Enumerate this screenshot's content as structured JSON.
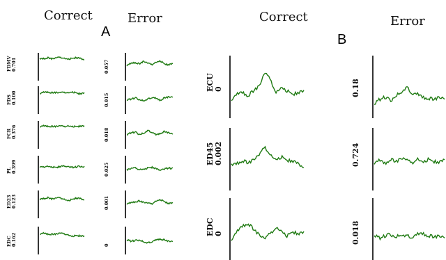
{
  "headers": {
    "a_correct": "Correct",
    "a_error": "Error",
    "b_correct": "Correct",
    "b_error": "Error"
  },
  "panels": {
    "a": "A",
    "b": "B"
  },
  "panelA": {
    "rows": [
      {
        "label": "FDMV",
        "correct_value": "0.701",
        "error_value": "0.057"
      },
      {
        "label": "FDS",
        "correct_value": "0.100",
        "error_value": "0.015"
      },
      {
        "label": "FCR",
        "correct_value": "0.376",
        "error_value": "0.018"
      },
      {
        "label": "PL",
        "correct_value": "0.399",
        "error_value": "0.025"
      },
      {
        "label": "ED23",
        "correct_value": "0.123",
        "error_value": "0.001"
      },
      {
        "label": "EDC",
        "correct_value": "0.162",
        "error_value": "0"
      }
    ]
  },
  "panelB": {
    "rows": [
      {
        "label": "ECU",
        "correct_value": "0",
        "error_value": "0.18"
      },
      {
        "label": "ED45",
        "correct_value": "0.002",
        "error_value": "0.724"
      },
      {
        "label": "EDC",
        "correct_value": "0",
        "error_value": "0.018"
      }
    ]
  },
  "colors": {
    "trace": "#1f7a12",
    "axis": "#000000"
  },
  "chart_data": {
    "type": "line",
    "panels": [
      {
        "panel": "A",
        "columns": [
          "Correct",
          "Error"
        ],
        "series": [
          {
            "name": "FDMV",
            "correct": [
              0.78,
              0.8,
              0.82,
              0.79,
              0.81,
              0.84,
              0.8,
              0.78,
              0.8,
              0.82,
              0.79,
              0.75
            ],
            "error": [
              0.55,
              0.62,
              0.66,
              0.6,
              0.7,
              0.62,
              0.58,
              0.66,
              0.72,
              0.6,
              0.56,
              0.6
            ]
          },
          {
            "name": "FDS",
            "correct": [
              0.74,
              0.78,
              0.8,
              0.76,
              0.78,
              0.76,
              0.78,
              0.76,
              0.8,
              0.76,
              0.72,
              0.74
            ],
            "error": [
              0.5,
              0.54,
              0.58,
              0.52,
              0.48,
              0.54,
              0.6,
              0.56,
              0.5,
              0.58,
              0.62,
              0.6
            ]
          },
          {
            "name": "FCR",
            "correct": [
              0.8,
              0.82,
              0.82,
              0.8,
              0.81,
              0.82,
              0.8,
              0.82,
              0.81,
              0.8,
              0.81,
              0.8
            ],
            "error": [
              0.5,
              0.58,
              0.6,
              0.52,
              0.56,
              0.66,
              0.6,
              0.5,
              0.56,
              0.62,
              0.58,
              0.52
            ]
          },
          {
            "name": "PL",
            "correct": [
              0.58,
              0.6,
              0.62,
              0.6,
              0.58,
              0.6,
              0.62,
              0.6,
              0.58,
              0.6,
              0.62,
              0.6
            ],
            "error": [
              0.5,
              0.54,
              0.56,
              0.5,
              0.52,
              0.56,
              0.58,
              0.52,
              0.48,
              0.52,
              0.56,
              0.54
            ]
          },
          {
            "name": "ED23",
            "correct": [
              0.68,
              0.72,
              0.74,
              0.7,
              0.72,
              0.74,
              0.68,
              0.64,
              0.68,
              0.72,
              0.7,
              0.66
            ],
            "error": [
              0.52,
              0.56,
              0.6,
              0.62,
              0.58,
              0.54,
              0.52,
              0.62,
              0.68,
              0.6,
              0.52,
              0.54
            ]
          },
          {
            "name": "EDC",
            "correct": [
              0.74,
              0.76,
              0.74,
              0.72,
              0.74,
              0.76,
              0.74,
              0.7,
              0.66,
              0.68,
              0.66,
              0.64
            ],
            "error": [
              0.52,
              0.48,
              0.5,
              0.52,
              0.46,
              0.42,
              0.46,
              0.52,
              0.56,
              0.52,
              0.48,
              0.46
            ]
          }
        ]
      },
      {
        "panel": "B",
        "columns": [
          "Correct",
          "Error"
        ],
        "series": [
          {
            "name": "ECU",
            "correct": [
              0.3,
              0.38,
              0.42,
              0.36,
              0.44,
              0.52,
              0.72,
              0.62,
              0.4,
              0.5,
              0.44,
              0.38,
              0.4,
              0.42
            ],
            "error": [
              0.22,
              0.3,
              0.34,
              0.28,
              0.36,
              0.42,
              0.5,
              0.4,
              0.38,
              0.34,
              0.32,
              0.3,
              0.34,
              0.3
            ]
          },
          {
            "name": "ED45",
            "correct": [
              0.4,
              0.44,
              0.48,
              0.44,
              0.5,
              0.56,
              0.7,
              0.56,
              0.5,
              0.54,
              0.48,
              0.46,
              0.42,
              0.36
            ],
            "error": [
              0.44,
              0.48,
              0.44,
              0.5,
              0.46,
              0.52,
              0.48,
              0.44,
              0.5,
              0.46,
              0.5,
              0.46,
              0.44,
              0.48
            ]
          },
          {
            "name": "EDC",
            "correct": [
              0.34,
              0.46,
              0.56,
              0.6,
              0.5,
              0.42,
              0.34,
              0.44,
              0.52,
              0.48,
              0.4,
              0.46,
              0.42,
              0.44
            ],
            "error": [
              0.4,
              0.36,
              0.4,
              0.42,
              0.38,
              0.42,
              0.4,
              0.38,
              0.42,
              0.44,
              0.4,
              0.38,
              0.4,
              0.36
            ]
          }
        ]
      }
    ]
  }
}
